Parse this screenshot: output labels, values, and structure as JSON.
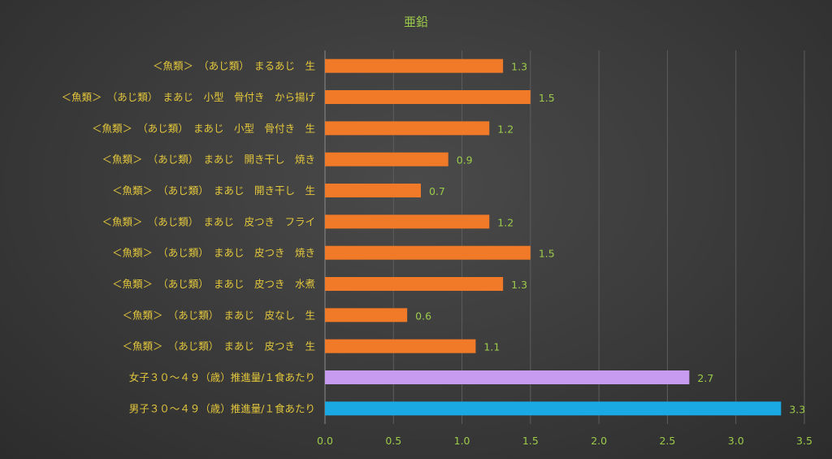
{
  "chart_data": {
    "type": "bar",
    "orientation": "horizontal",
    "title": "亜鉛",
    "categories": [
      "＜魚類＞　（あじ類）　まるあじ　生",
      "＜魚類＞　（あじ類）　まあじ　小型　骨付き　から揚げ",
      "＜魚類＞　（あじ類）　まあじ　小型　骨付き　生",
      "＜魚類＞　（あじ類）　まあじ　開き干し　焼き",
      "＜魚類＞　（あじ類）　まあじ　開き干し　生",
      "＜魚類＞　（あじ類）　まあじ　皮つき　フライ",
      "＜魚類＞　（あじ類）　まあじ　皮つき　焼き",
      "＜魚類＞　（あじ類）　まあじ　皮つき　水煮",
      "＜魚類＞　（あじ類）　まあじ　皮なし　生",
      "＜魚類＞　（あじ類）　まあじ　皮つき　生",
      "女子３０～４９（歳）推進量/１食あたり",
      "男子３０～４９（歳）推進量/１食あたり"
    ],
    "values": [
      1.3,
      1.5,
      1.2,
      0.9,
      0.7,
      1.2,
      1.5,
      1.3,
      0.6,
      1.1,
      2.66,
      3.33
    ],
    "value_labels": [
      "1.3",
      "1.5",
      "1.2",
      "0.9",
      "0.7",
      "1.2",
      "1.5",
      "1.3",
      "0.6",
      "1.1",
      "2.7",
      "3.3"
    ],
    "bar_colors": [
      "#f07a28",
      "#f07a28",
      "#f07a28",
      "#f07a28",
      "#f07a28",
      "#f07a28",
      "#f07a28",
      "#f07a28",
      "#f07a28",
      "#f07a28",
      "#c79cf0",
      "#1aa9e3"
    ],
    "xlim": [
      0,
      3.5
    ],
    "xticks": [
      0,
      0.5,
      1,
      1.5,
      2,
      2.5,
      3,
      3.5
    ],
    "xtick_labels": [
      "0.0",
      "0.5",
      "1.0",
      "1.5",
      "2.0",
      "2.5",
      "3.0",
      "3.5"
    ],
    "grid": true,
    "legend": "none"
  }
}
